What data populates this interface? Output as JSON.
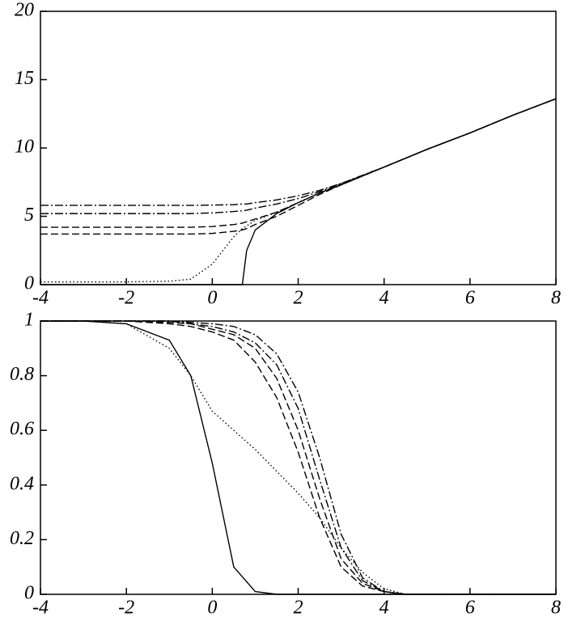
{
  "chart_data": [
    {
      "type": "line",
      "xlim": [
        -4,
        8
      ],
      "ylim": [
        0,
        20
      ],
      "xticks": [
        -4,
        -2,
        0,
        2,
        4,
        6,
        8
      ],
      "yticks": [
        0,
        5,
        10,
        15,
        20
      ],
      "x": [
        -4,
        -3,
        -2,
        -1,
        -0.5,
        0,
        0.5,
        0.7,
        0.8,
        1,
        1.5,
        2,
        2.5,
        3,
        4,
        5,
        6,
        7,
        8
      ],
      "series": [
        {
          "color": "#000000",
          "dash": "solid",
          "values": [
            0,
            0,
            0,
            0,
            0,
            0,
            0,
            0,
            2.5,
            4,
            5.2,
            6,
            6.7,
            7.3,
            8.6,
            9.9,
            11.1,
            12.4,
            13.6
          ]
        },
        {
          "color": "#000000",
          "dash": "dotted",
          "values": [
            0.2,
            0.2,
            0.2,
            0.25,
            0.4,
            1.5,
            3.5,
            4.1,
            4.3,
            4.7,
            5.3,
            6,
            6.7,
            7.3,
            8.6,
            9.9,
            11.1,
            12.4,
            13.6
          ]
        },
        {
          "color": "#000000",
          "dash": "dashed",
          "values": [
            3.7,
            3.7,
            3.7,
            3.7,
            3.7,
            3.75,
            3.9,
            4,
            4.1,
            4.4,
            5,
            5.8,
            6.6,
            7.3,
            8.6,
            9.9,
            11.1,
            12.4,
            13.6
          ]
        },
        {
          "color": "#000000",
          "dash": "dashed",
          "values": [
            4.2,
            4.2,
            4.2,
            4.2,
            4.2,
            4.25,
            4.4,
            4.5,
            4.6,
            4.8,
            5.3,
            6,
            6.7,
            7.35,
            8.6,
            9.9,
            11.1,
            12.4,
            13.6
          ]
        },
        {
          "color": "#000000",
          "dash": "dashdot",
          "values": [
            5.2,
            5.2,
            5.2,
            5.2,
            5.2,
            5.25,
            5.35,
            5.4,
            5.45,
            5.6,
            5.9,
            6.3,
            6.8,
            7.4,
            8.6,
            9.9,
            11.1,
            12.4,
            13.6
          ]
        },
        {
          "color": "#000000",
          "dash": "dashdot",
          "values": [
            5.8,
            5.8,
            5.8,
            5.8,
            5.8,
            5.82,
            5.85,
            5.9,
            5.9,
            6,
            6.2,
            6.5,
            6.9,
            7.4,
            8.6,
            9.9,
            11.1,
            12.4,
            13.6
          ]
        }
      ]
    },
    {
      "type": "line",
      "xlim": [
        -4,
        8
      ],
      "ylim": [
        0,
        1
      ],
      "xticks": [
        -4,
        -2,
        0,
        2,
        4,
        6,
        8
      ],
      "yticks": [
        0,
        0.2,
        0.4,
        0.6,
        0.8,
        1
      ],
      "x": [
        -4,
        -3,
        -2,
        -1,
        -0.5,
        0,
        0.5,
        1,
        1.5,
        2,
        2.5,
        3,
        3.5,
        4,
        4.5,
        5,
        6,
        8
      ],
      "series": [
        {
          "color": "#000000",
          "dash": "solid",
          "values": [
            1,
            1,
            0.99,
            0.93,
            0.8,
            0.48,
            0.1,
            0.01,
            0,
            0,
            0,
            0,
            0,
            0,
            0,
            0,
            0,
            0
          ]
        },
        {
          "color": "#000000",
          "dash": "dotted",
          "values": [
            1,
            1,
            0.99,
            0.9,
            0.8,
            0.67,
            0.6,
            0.53,
            0.45,
            0.37,
            0.28,
            0.17,
            0.08,
            0.02,
            0,
            0,
            0,
            0
          ]
        },
        {
          "color": "#000000",
          "dash": "dashed",
          "values": [
            1,
            1,
            1,
            0.99,
            0.98,
            0.96,
            0.93,
            0.85,
            0.72,
            0.52,
            0.28,
            0.1,
            0.03,
            0.01,
            0,
            0,
            0,
            0
          ]
        },
        {
          "color": "#000000",
          "dash": "dashed",
          "values": [
            1,
            1,
            1,
            0.995,
            0.99,
            0.97,
            0.95,
            0.9,
            0.79,
            0.6,
            0.35,
            0.13,
            0.04,
            0.01,
            0,
            0,
            0,
            0
          ]
        },
        {
          "color": "#000000",
          "dash": "dashdot",
          "values": [
            1,
            1,
            1,
            1,
            0.99,
            0.98,
            0.96,
            0.92,
            0.84,
            0.68,
            0.42,
            0.17,
            0.05,
            0.01,
            0,
            0,
            0,
            0
          ]
        },
        {
          "color": "#000000",
          "dash": "dashdot",
          "values": [
            1,
            1,
            1,
            1,
            0.995,
            0.99,
            0.98,
            0.95,
            0.88,
            0.74,
            0.5,
            0.22,
            0.06,
            0.01,
            0,
            0,
            0,
            0
          ]
        }
      ]
    }
  ]
}
